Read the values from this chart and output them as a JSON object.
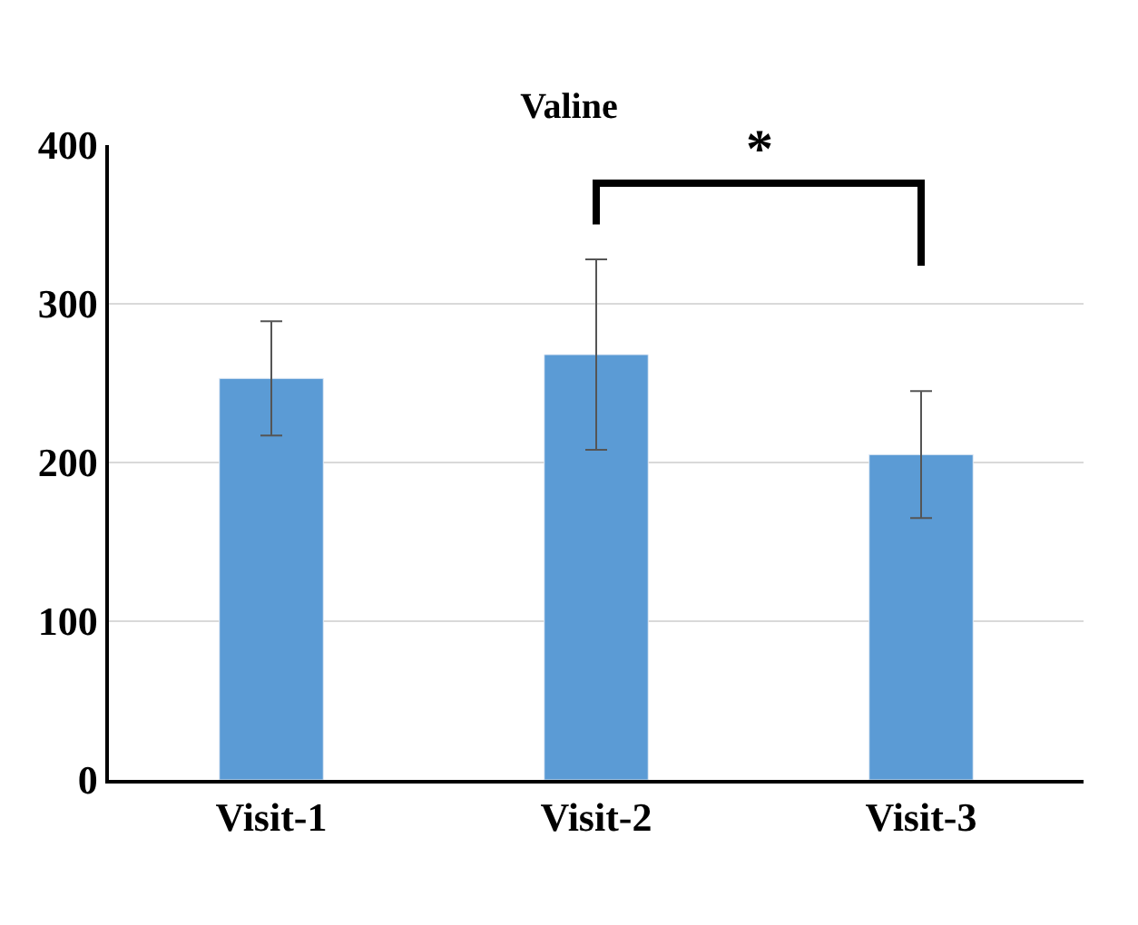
{
  "chart_data": {
    "type": "bar",
    "title": "Valine",
    "categories": [
      "Visit-1",
      "Visit-2",
      "Visit-3"
    ],
    "values": [
      253,
      268,
      205
    ],
    "errors": [
      36,
      60,
      40
    ],
    "color": "#5b9bd5",
    "ylim": [
      0,
      400
    ],
    "yticks": [
      0,
      100,
      200,
      300,
      400
    ],
    "grid": "y",
    "annotations": [
      "*"
    ]
  }
}
